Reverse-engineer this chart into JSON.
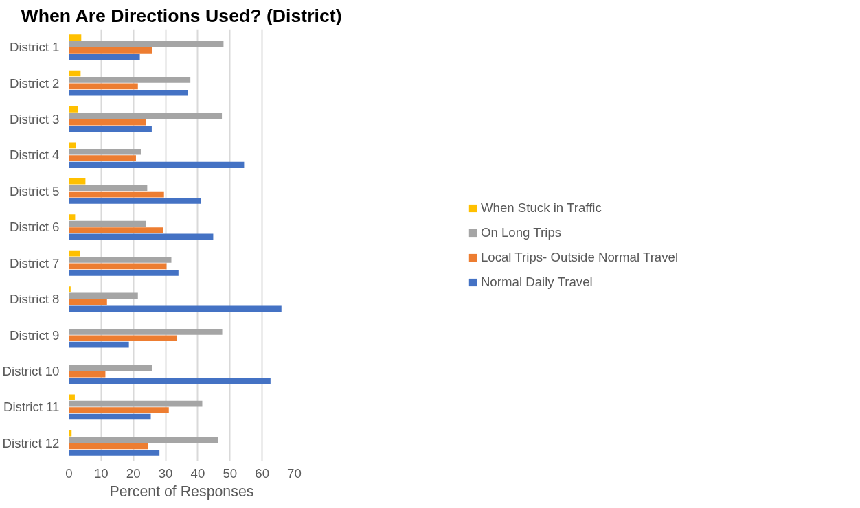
{
  "chart_data": {
    "type": "bar",
    "orientation": "horizontal",
    "title": "When Are Directions Used? (District)",
    "xlabel": "Percent of Responses",
    "categories": [
      "District 1",
      "District 2",
      "District 3",
      "District 4",
      "District 5",
      "District 6",
      "District 7",
      "District 8",
      "District 9",
      "District 10",
      "District 11",
      "District 12"
    ],
    "series": [
      {
        "name": "Normal Daily Travel",
        "color": "#4472c4",
        "values": [
          22.0,
          37.0,
          25.7,
          54.4,
          40.9,
          44.8,
          34.0,
          66.0,
          18.6,
          62.6,
          25.4,
          28.1
        ]
      },
      {
        "name": "Local Trips- Outside Normal Travel",
        "color": "#ed7d31",
        "values": [
          25.9,
          21.4,
          23.8,
          20.8,
          29.5,
          29.2,
          30.3,
          11.8,
          33.6,
          11.3,
          31.0,
          24.5
        ]
      },
      {
        "name": "On Long Trips",
        "color": "#a5a5a5",
        "values": [
          48.0,
          37.7,
          47.5,
          22.3,
          24.3,
          24.0,
          31.8,
          21.4,
          47.6,
          25.9,
          41.4,
          46.3
        ]
      },
      {
        "name": "When Stuck in Traffic",
        "color": "#ffc000",
        "values": [
          3.8,
          3.6,
          2.8,
          2.2,
          5.1,
          1.9,
          3.5,
          0.5,
          0,
          0,
          1.8,
          0.8
        ]
      }
    ],
    "xlim": [
      0,
      70
    ],
    "xticks": [
      0,
      10,
      20,
      30,
      40,
      50,
      60,
      70
    ],
    "grid": "x",
    "legend": "right"
  }
}
